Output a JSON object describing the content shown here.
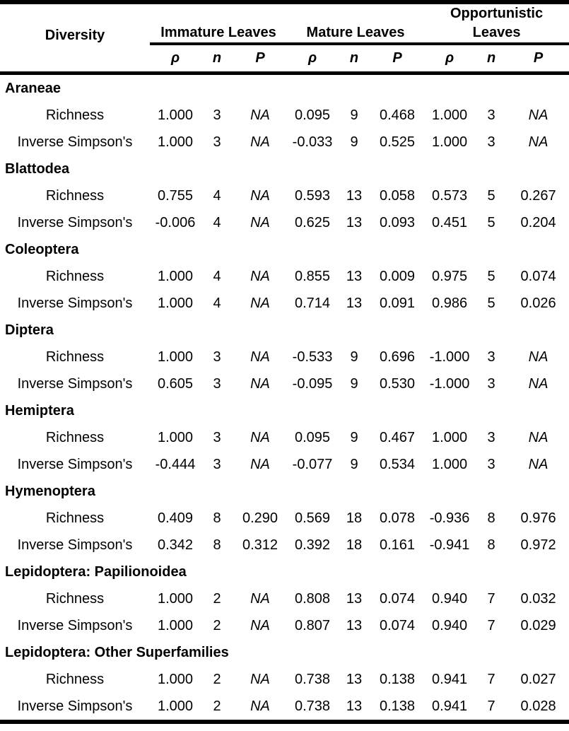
{
  "header": {
    "diversity_label": "Diversity",
    "groups": [
      {
        "line1": "",
        "line2": "Immature Leaves"
      },
      {
        "line1": "",
        "line2": "Mature Leaves"
      },
      {
        "line1": "Opportunistic",
        "line2": "Leaves"
      }
    ],
    "stat_labels": {
      "rho": "ρ",
      "n": "n",
      "p": "P"
    }
  },
  "sections": [
    {
      "name": "Araneae",
      "rows": [
        {
          "label": "Richness",
          "values": [
            "1.000",
            "3",
            "NA",
            "0.095",
            "9",
            "0.468",
            "1.000",
            "3",
            "NA"
          ]
        },
        {
          "label": "Inverse Simpson's",
          "values": [
            "1.000",
            "3",
            "NA",
            "-0.033",
            "9",
            "0.525",
            "1.000",
            "3",
            "NA"
          ]
        }
      ]
    },
    {
      "name": "Blattodea",
      "rows": [
        {
          "label": "Richness",
          "values": [
            "0.755",
            "4",
            "NA",
            "0.593",
            "13",
            "0.058",
            "0.573",
            "5",
            "0.267"
          ]
        },
        {
          "label": "Inverse Simpson's",
          "values": [
            "-0.006",
            "4",
            "NA",
            "0.625",
            "13",
            "0.093",
            "0.451",
            "5",
            "0.204"
          ]
        }
      ]
    },
    {
      "name": "Coleoptera",
      "rows": [
        {
          "label": "Richness",
          "values": [
            "1.000",
            "4",
            "NA",
            "0.855",
            "13",
            "0.009",
            "0.975",
            "5",
            "0.074"
          ]
        },
        {
          "label": "Inverse Simpson's",
          "values": [
            "1.000",
            "4",
            "NA",
            "0.714",
            "13",
            "0.091",
            "0.986",
            "5",
            "0.026"
          ]
        }
      ]
    },
    {
      "name": "Diptera",
      "rows": [
        {
          "label": "Richness",
          "values": [
            "1.000",
            "3",
            "NA",
            "-0.533",
            "9",
            "0.696",
            "-1.000",
            "3",
            "NA"
          ]
        },
        {
          "label": "Inverse Simpson's",
          "values": [
            "0.605",
            "3",
            "NA",
            "-0.095",
            "9",
            "0.530",
            "-1.000",
            "3",
            "NA"
          ]
        }
      ]
    },
    {
      "name": "Hemiptera",
      "rows": [
        {
          "label": "Richness",
          "values": [
            "1.000",
            "3",
            "NA",
            "0.095",
            "9",
            "0.467",
            "1.000",
            "3",
            "NA"
          ]
        },
        {
          "label": "Inverse Simpson's",
          "values": [
            "-0.444",
            "3",
            "NA",
            "-0.077",
            "9",
            "0.534",
            "1.000",
            "3",
            "NA"
          ]
        }
      ]
    },
    {
      "name": "Hymenoptera",
      "rows": [
        {
          "label": "Richness",
          "values": [
            "0.409",
            "8",
            "0.290",
            "0.569",
            "18",
            "0.078",
            "-0.936",
            "8",
            "0.976"
          ]
        },
        {
          "label": "Inverse Simpson's",
          "values": [
            "0.342",
            "8",
            "0.312",
            "0.392",
            "18",
            "0.161",
            "-0.941",
            "8",
            "0.972"
          ]
        }
      ]
    },
    {
      "name": "Lepidoptera: Papilionoidea",
      "rows": [
        {
          "label": "Richness",
          "values": [
            "1.000",
            "2",
            "NA",
            "0.808",
            "13",
            "0.074",
            "0.940",
            "7",
            "0.032"
          ]
        },
        {
          "label": "Inverse Simpson's",
          "values": [
            "1.000",
            "2",
            "NA",
            "0.807",
            "13",
            "0.074",
            "0.940",
            "7",
            "0.029"
          ]
        }
      ]
    },
    {
      "name": "Lepidoptera: Other Superfamilies",
      "rows": [
        {
          "label": "Richness",
          "values": [
            "1.000",
            "2",
            "NA",
            "0.738",
            "13",
            "0.138",
            "0.941",
            "7",
            "0.027"
          ]
        },
        {
          "label": "Inverse Simpson's",
          "values": [
            "1.000",
            "2",
            "NA",
            "0.738",
            "13",
            "0.138",
            "0.941",
            "7",
            "0.028"
          ]
        }
      ]
    }
  ]
}
